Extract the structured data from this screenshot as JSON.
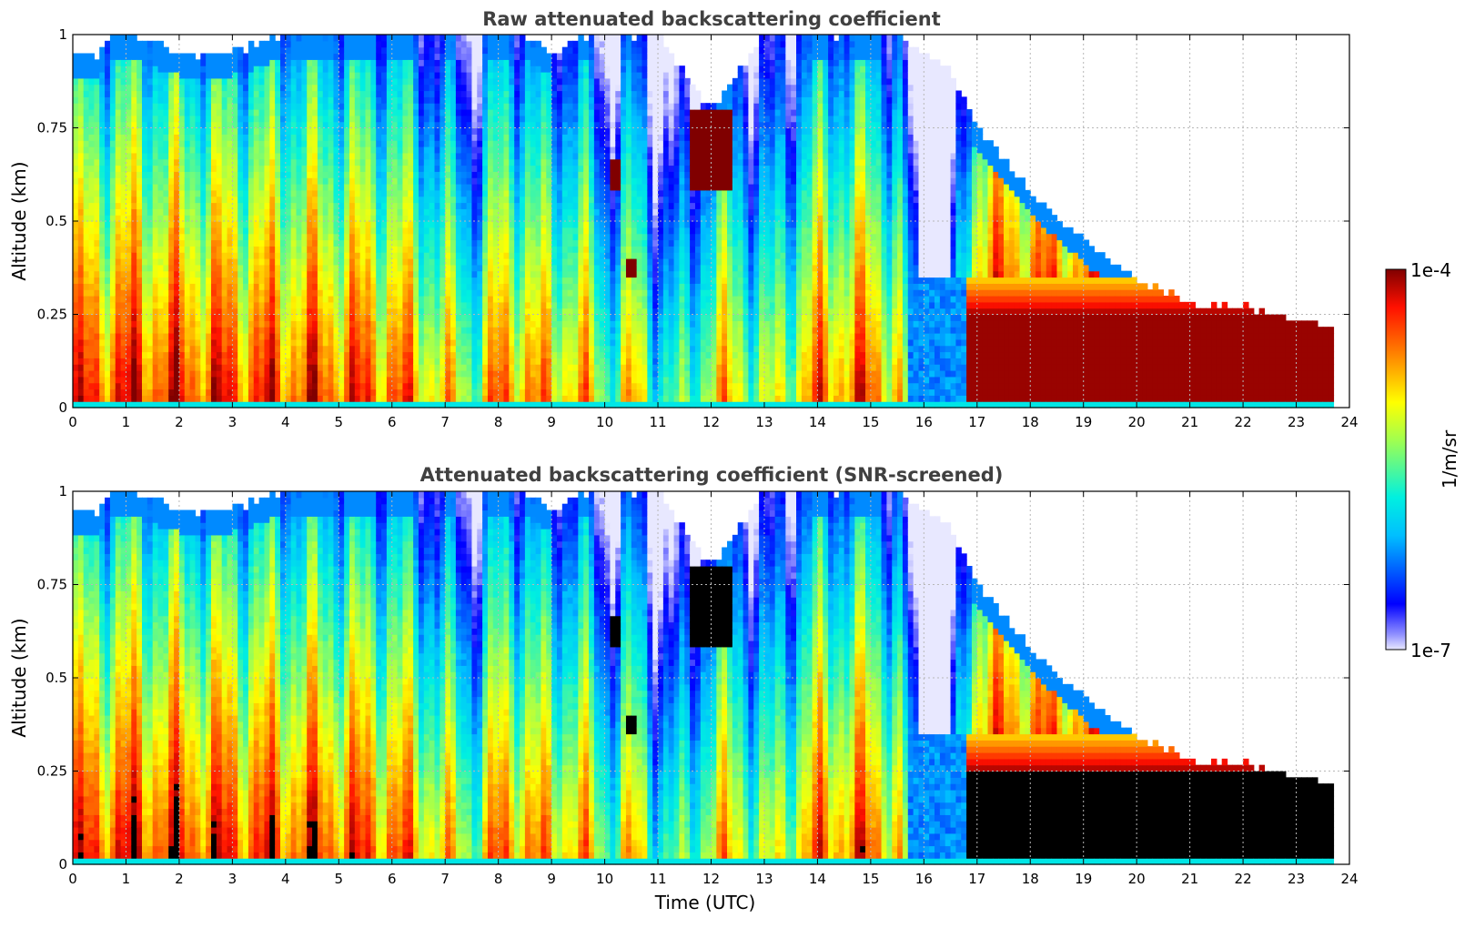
{
  "chart_data": [
    {
      "type": "heatmap",
      "title": "Raw attenuated backscattering coefficient",
      "ylabel": "Altitude (km)",
      "xlabel": "",
      "xlim": [
        0,
        24
      ],
      "ylim": [
        0,
        1
      ],
      "x_ticks": [
        "0",
        "1",
        "2",
        "3",
        "4",
        "5",
        "6",
        "7",
        "8",
        "9",
        "10",
        "11",
        "12",
        "13",
        "14",
        "15",
        "16",
        "17",
        "18",
        "19",
        "20",
        "21",
        "22",
        "23",
        "24"
      ],
      "y_ticks": [
        "0",
        "0.25",
        "0.5",
        "0.75",
        "1"
      ],
      "grid": true,
      "screened": false,
      "profiles": {
        "time_utc": [
          0.0,
          0.5,
          0.7,
          1,
          2,
          3,
          4,
          5,
          6,
          7,
          7.5,
          8,
          8.5,
          9,
          9.5,
          10,
          10.5,
          11,
          11.5,
          12,
          12.5,
          13,
          14,
          15,
          15.5,
          16,
          16.5,
          17,
          18,
          19,
          20,
          21,
          22,
          23,
          23.7
        ],
        "top_level_km": [
          0.95,
          0.95,
          1.0,
          1.0,
          0.95,
          0.95,
          1.0,
          1.0,
          1.0,
          1.0,
          1.0,
          1.0,
          1.0,
          0.95,
          1.0,
          1.0,
          1.0,
          1.0,
          0.9,
          0.8,
          0.9,
          1.0,
          1.0,
          1.0,
          1.0,
          0.95,
          0.9,
          0.75,
          0.58,
          0.45,
          0.34,
          0.28,
          0.27,
          0.23,
          0.21
        ],
        "surface_intensity": [
          0.88,
          0.88,
          0.92,
          0.92,
          0.9,
          0.9,
          0.88,
          0.88,
          0.85,
          0.7,
          0.6,
          0.82,
          0.82,
          0.72,
          0.8,
          0.55,
          0.72,
          0.5,
          0.45,
          0.7,
          0.7,
          0.55,
          0.82,
          0.85,
          0.75,
          0.12,
          0.2,
          0.98,
          0.98,
          0.98,
          0.98,
          0.98,
          0.98,
          0.98,
          0.98
        ]
      },
      "features": [
        {
          "name": "cloud",
          "time_utc": [
            11.6,
            12.4
          ],
          "altitude_km": [
            0.58,
            0.8
          ]
        },
        {
          "name": "cloud",
          "time_utc": [
            10.1,
            10.3
          ],
          "altitude_km": [
            0.58,
            0.66
          ]
        },
        {
          "name": "cloud",
          "time_utc": [
            10.4,
            10.6
          ],
          "altitude_km": [
            0.35,
            0.4
          ]
        },
        {
          "name": "boundary-layer",
          "time_utc": [
            15.7,
            23.7
          ],
          "altitude_km": [
            0.0,
            0.35
          ]
        }
      ]
    },
    {
      "type": "heatmap",
      "title": "Attenuated backscattering coefficient (SNR-screened)",
      "ylabel": "Altitude (km)",
      "xlabel": "Time (UTC)",
      "xlim": [
        0,
        24
      ],
      "ylim": [
        0,
        1
      ],
      "x_ticks": [
        "0",
        "1",
        "2",
        "3",
        "4",
        "5",
        "6",
        "7",
        "8",
        "9",
        "10",
        "11",
        "12",
        "13",
        "14",
        "15",
        "16",
        "17",
        "18",
        "19",
        "20",
        "21",
        "22",
        "23",
        "24"
      ],
      "y_ticks": [
        "0",
        "0.25",
        "0.5",
        "0.75",
        "1"
      ],
      "grid": true,
      "screened": true
    }
  ],
  "colorbar": {
    "min_label": "1e-7",
    "max_label": "1e-4",
    "label": "1/m/sr",
    "colormap": "jet",
    "placement": "right"
  }
}
